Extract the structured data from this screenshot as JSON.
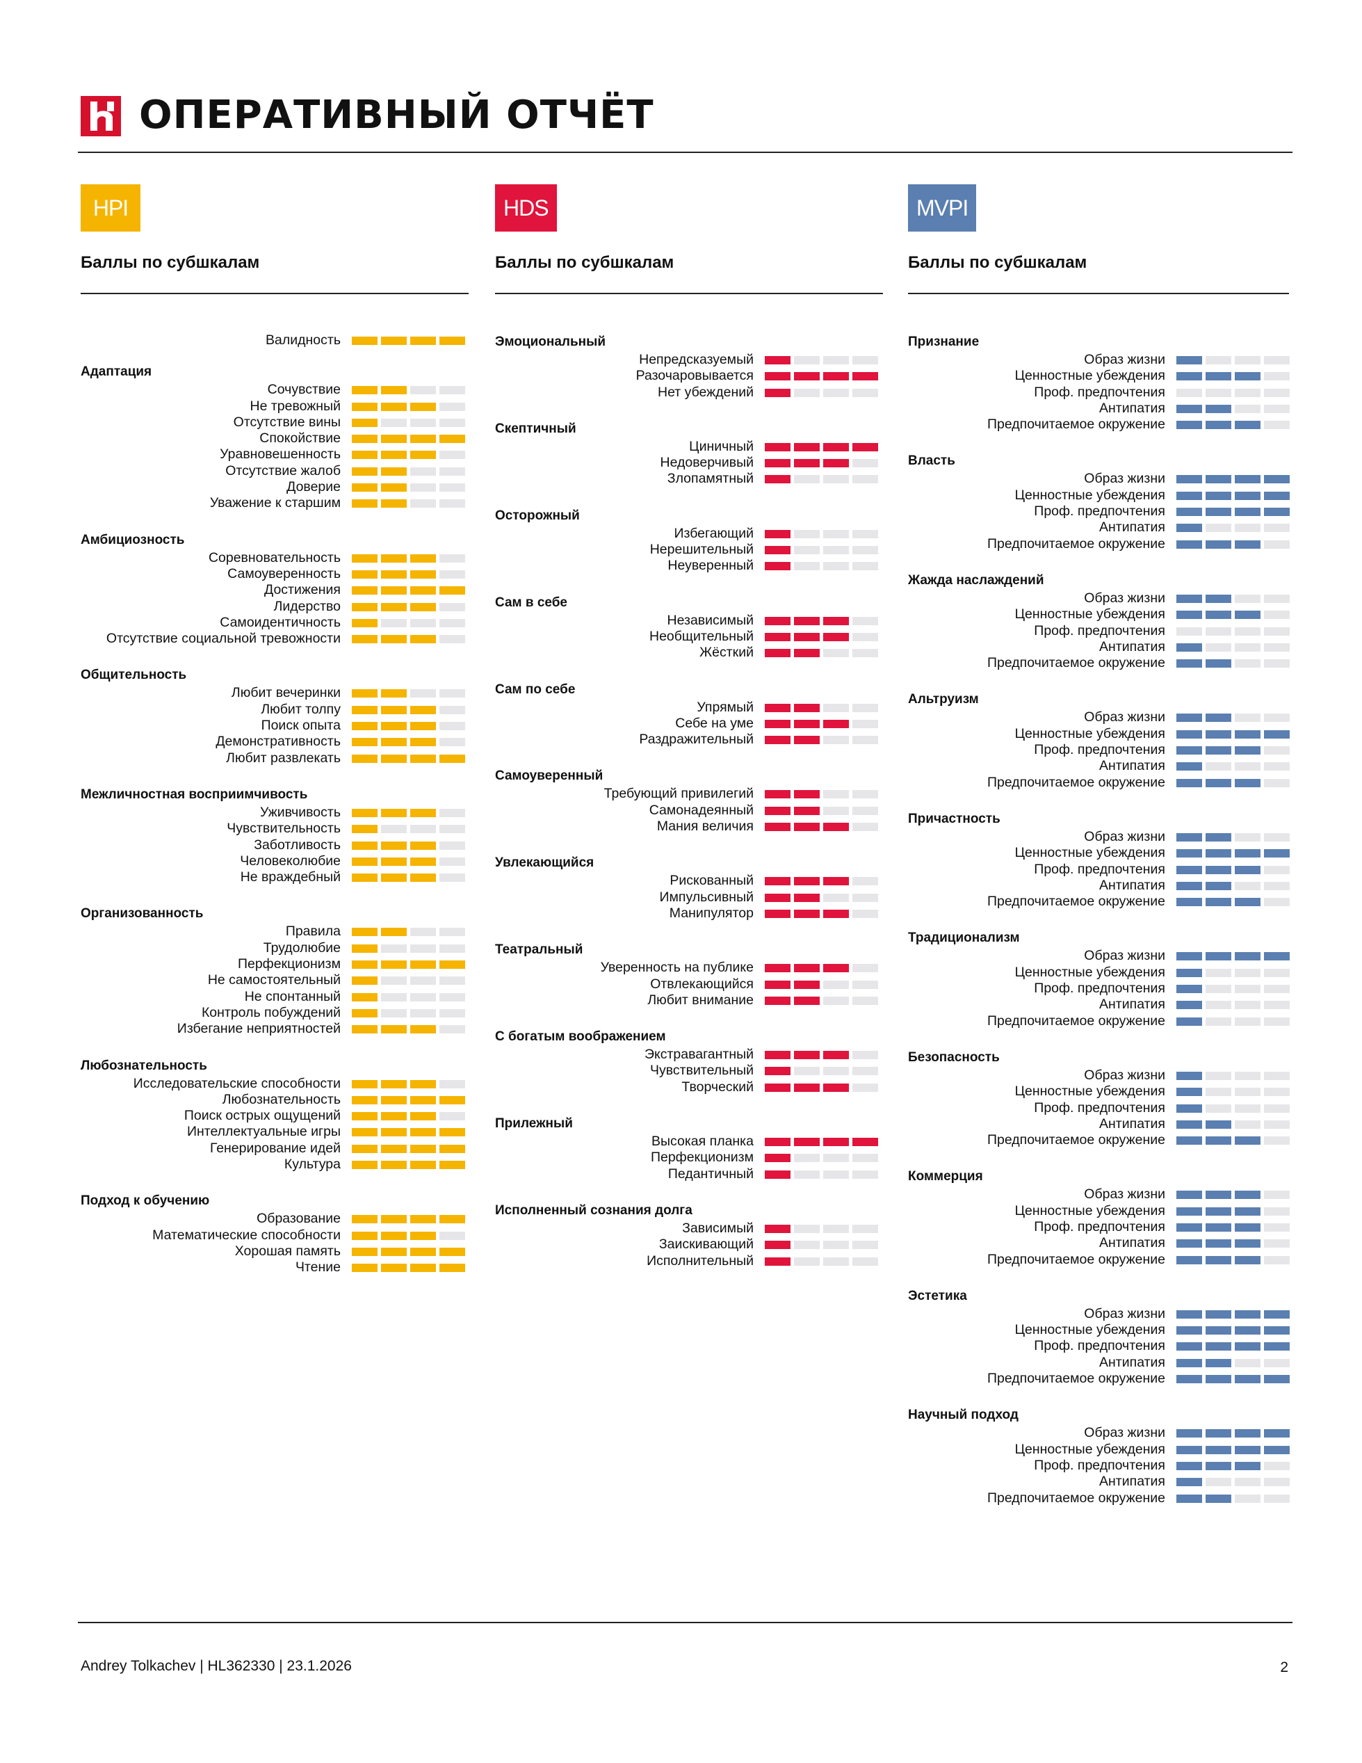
{
  "title": "ОПЕРАТИВНЫЙ ОТЧЁТ",
  "footer": {
    "left": "Andrey Tolkachev | HL362330 | 23.1.2026",
    "page": "2"
  },
  "columns": [
    {
      "badge": "HPI",
      "color": "#f5b400",
      "subtitle": "Баллы по субшкалам",
      "blocks": [
        {
          "gap_before": 0,
          "title": "",
          "rows": [
            {
              "label": "Валидность",
              "level": 4
            }
          ]
        },
        {
          "gap_before": 20,
          "title": "Адаптация",
          "rows": [
            {
              "label": "Сочувствие",
              "level": 2
            },
            {
              "label": "Не тревожный",
              "level": 3
            },
            {
              "label": "Отсутствие вины",
              "level": 1
            },
            {
              "label": "Спокойствие",
              "level": 4
            },
            {
              "label": "Уравновешенность",
              "level": 3
            },
            {
              "label": "Отсутствие жалоб",
              "level": 2
            },
            {
              "label": "Доверие",
              "level": 2
            },
            {
              "label": "Уважение к старшим",
              "level": 2
            }
          ]
        },
        {
          "gap_before": 27,
          "title": "Амбициозность",
          "rows": [
            {
              "label": "Соревновательность",
              "level": 3
            },
            {
              "label": "Самоуверенность",
              "level": 3
            },
            {
              "label": "Достижения",
              "level": 4
            },
            {
              "label": "Лидерство",
              "level": 3
            },
            {
              "label": "Самоидентичность",
              "level": 1
            },
            {
              "label": "Отсутствие социальной тревожности",
              "level": 3
            }
          ]
        },
        {
          "gap_before": 27,
          "title": "Общительность",
          "rows": [
            {
              "label": "Любит вечеринки",
              "level": 2
            },
            {
              "label": "Любит толпу",
              "level": 3
            },
            {
              "label": "Поиск опыта",
              "level": 3
            },
            {
              "label": "Демонстративность",
              "level": 3
            },
            {
              "label": "Любит развлекать",
              "level": 4
            }
          ]
        },
        {
          "gap_before": 27,
          "title": "Межличностная восприимчивость",
          "rows": [
            {
              "label": "Уживчивость",
              "level": 3
            },
            {
              "label": "Чувствительность",
              "level": 1
            },
            {
              "label": "Заботливость",
              "level": 3
            },
            {
              "label": "Человеколюбие",
              "level": 3
            },
            {
              "label": "Не враждебный",
              "level": 3
            }
          ]
        },
        {
          "gap_before": 27,
          "title": "Организованность",
          "rows": [
            {
              "label": "Правила",
              "level": 2
            },
            {
              "label": "Трудолюбие",
              "level": 1
            },
            {
              "label": "Перфекционизм",
              "level": 4
            },
            {
              "label": "Не самостоятельный",
              "level": 1
            },
            {
              "label": "Не спонтанный",
              "level": 1
            },
            {
              "label": "Контроль побуждений",
              "level": 1
            },
            {
              "label": "Избегание неприятностей",
              "level": 3
            }
          ]
        },
        {
          "gap_before": 27,
          "title": "Любознательность",
          "rows": [
            {
              "label": "Исследовательские способности",
              "level": 3
            },
            {
              "label": "Любознательность",
              "level": 4
            },
            {
              "label": "Поиск острых ощущений",
              "level": 3
            },
            {
              "label": "Интеллектуальные игры",
              "level": 4
            },
            {
              "label": "Генерирование идей",
              "level": 4
            },
            {
              "label": "Культура",
              "level": 4
            }
          ]
        },
        {
          "gap_before": 27,
          "title": "Подход к обучению",
          "rows": [
            {
              "label": "Образование",
              "level": 4
            },
            {
              "label": "Математические способности",
              "level": 3
            },
            {
              "label": "Хорошая память",
              "level": 4
            },
            {
              "label": "Чтение",
              "level": 4
            }
          ]
        }
      ]
    },
    {
      "badge": "HDS",
      "color": "#e0143c",
      "subtitle": "Баллы по субшкалам",
      "blocks": [
        {
          "gap_before": 0,
          "title": "Эмоциональный",
          "rows": [
            {
              "label": "Непредсказуемый",
              "level": 1
            },
            {
              "label": "Разочаровывается",
              "level": 4
            },
            {
              "label": "Нет убеждений",
              "level": 1
            }
          ]
        },
        {
          "gap_before": 27,
          "title": "Скептичный",
          "rows": [
            {
              "label": "Циничный",
              "level": 4
            },
            {
              "label": "Недоверчивый",
              "level": 3
            },
            {
              "label": "Злопамятный",
              "level": 1
            }
          ]
        },
        {
          "gap_before": 27,
          "title": "Осторожный",
          "rows": [
            {
              "label": "Избегающий",
              "level": 1
            },
            {
              "label": "Нерешительный",
              "level": 1
            },
            {
              "label": "Неуверенный",
              "level": 1
            }
          ]
        },
        {
          "gap_before": 27,
          "title": "Сам в себе",
          "rows": [
            {
              "label": "Независимый",
              "level": 3
            },
            {
              "label": "Необщительный",
              "level": 3
            },
            {
              "label": "Жёсткий",
              "level": 2
            }
          ]
        },
        {
          "gap_before": 27,
          "title": "Сам по себе",
          "rows": [
            {
              "label": "Упрямый",
              "level": 2
            },
            {
              "label": "Себе на уме",
              "level": 3
            },
            {
              "label": "Раздражительный",
              "level": 2
            }
          ]
        },
        {
          "gap_before": 27,
          "title": "Самоуверенный",
          "rows": [
            {
              "label": "Требующий привилегий",
              "level": 2
            },
            {
              "label": "Самонадеянный",
              "level": 2
            },
            {
              "label": "Мания величия",
              "level": 3
            }
          ]
        },
        {
          "gap_before": 27,
          "title": "Увлекающийся",
          "rows": [
            {
              "label": "Рискованный",
              "level": 3
            },
            {
              "label": "Импульсивный",
              "level": 2
            },
            {
              "label": "Манипулятор",
              "level": 3
            }
          ]
        },
        {
          "gap_before": 27,
          "title": "Театральный",
          "rows": [
            {
              "label": "Уверенность на публике",
              "level": 3
            },
            {
              "label": "Отвлекающийся",
              "level": 2
            },
            {
              "label": "Любит внимание",
              "level": 2
            }
          ]
        },
        {
          "gap_before": 27,
          "title": "С богатым воображением",
          "rows": [
            {
              "label": "Экстравагантный",
              "level": 3
            },
            {
              "label": "Чувствительный",
              "level": 1
            },
            {
              "label": "Творческий",
              "level": 3
            }
          ]
        },
        {
          "gap_before": 27,
          "title": "Прилежный",
          "rows": [
            {
              "label": "Высокая планка",
              "level": 4
            },
            {
              "label": "Перфекционизм",
              "level": 1
            },
            {
              "label": "Педантичный",
              "level": 1
            }
          ]
        },
        {
          "gap_before": 27,
          "title": "Исполненный сознания долга",
          "rows": [
            {
              "label": "Зависимый",
              "level": 1
            },
            {
              "label": "Заискивающий",
              "level": 1
            },
            {
              "label": "Исполнительный",
              "level": 1
            }
          ]
        }
      ]
    },
    {
      "badge": "MVPI",
      "color": "#5a7fb0",
      "subtitle": "Баллы по субшкалам",
      "blocks": [
        {
          "gap_before": 0,
          "title": "Признание",
          "rows": [
            {
              "label": "Образ жизни",
              "level": 1
            },
            {
              "label": "Ценностные убеждения",
              "level": 3
            },
            {
              "label": "Проф. предпочтения",
              "level": 0
            },
            {
              "label": "Антипатия",
              "level": 2
            },
            {
              "label": "Предпочитаемое окружение",
              "level": 3
            }
          ]
        },
        {
          "gap_before": 27,
          "title": "Власть",
          "rows": [
            {
              "label": "Образ жизни",
              "level": 4
            },
            {
              "label": "Ценностные убеждения",
              "level": 4
            },
            {
              "label": "Проф. предпочтения",
              "level": 4
            },
            {
              "label": "Антипатия",
              "level": 1
            },
            {
              "label": "Предпочитаемое окружение",
              "level": 3
            }
          ]
        },
        {
          "gap_before": 27,
          "title": "Жажда наслаждений",
          "rows": [
            {
              "label": "Образ жизни",
              "level": 2
            },
            {
              "label": "Ценностные убеждения",
              "level": 3
            },
            {
              "label": "Проф. предпочтения",
              "level": 0
            },
            {
              "label": "Антипатия",
              "level": 1
            },
            {
              "label": "Предпочитаемое окружение",
              "level": 2
            }
          ]
        },
        {
          "gap_before": 27,
          "title": "Альтруизм",
          "rows": [
            {
              "label": "Образ жизни",
              "level": 2
            },
            {
              "label": "Ценностные убеждения",
              "level": 4
            },
            {
              "label": "Проф. предпочтения",
              "level": 3
            },
            {
              "label": "Антипатия",
              "level": 1
            },
            {
              "label": "Предпочитаемое окружение",
              "level": 3
            }
          ]
        },
        {
          "gap_before": 27,
          "title": "Причастность",
          "rows": [
            {
              "label": "Образ жизни",
              "level": 2
            },
            {
              "label": "Ценностные убеждения",
              "level": 4
            },
            {
              "label": "Проф. предпочтения",
              "level": 3
            },
            {
              "label": "Антипатия",
              "level": 2
            },
            {
              "label": "Предпочитаемое окружение",
              "level": 3
            }
          ]
        },
        {
          "gap_before": 27,
          "title": "Традиционализм",
          "rows": [
            {
              "label": "Образ жизни",
              "level": 4
            },
            {
              "label": "Ценностные убеждения",
              "level": 1
            },
            {
              "label": "Проф. предпочтения",
              "level": 1
            },
            {
              "label": "Антипатия",
              "level": 1
            },
            {
              "label": "Предпочитаемое окружение",
              "level": 1
            }
          ]
        },
        {
          "gap_before": 27,
          "title": "Безопасность",
          "rows": [
            {
              "label": "Образ жизни",
              "level": 1
            },
            {
              "label": "Ценностные убеждения",
              "level": 1
            },
            {
              "label": "Проф. предпочтения",
              "level": 1
            },
            {
              "label": "Антипатия",
              "level": 2
            },
            {
              "label": "Предпочитаемое окружение",
              "level": 3
            }
          ]
        },
        {
          "gap_before": 27,
          "title": "Коммерция",
          "rows": [
            {
              "label": "Образ жизни",
              "level": 3
            },
            {
              "label": "Ценностные убеждения",
              "level": 3
            },
            {
              "label": "Проф. предпочтения",
              "level": 3
            },
            {
              "label": "Антипатия",
              "level": 3
            },
            {
              "label": "Предпочитаемое окружение",
              "level": 3
            }
          ]
        },
        {
          "gap_before": 27,
          "title": "Эстетика",
          "rows": [
            {
              "label": "Образ жизни",
              "level": 4
            },
            {
              "label": "Ценностные убеждения",
              "level": 4
            },
            {
              "label": "Проф. предпочтения",
              "level": 4
            },
            {
              "label": "Антипатия",
              "level": 2
            },
            {
              "label": "Предпочитаемое окружение",
              "level": 4
            }
          ]
        },
        {
          "gap_before": 27,
          "title": "Научный подход",
          "rows": [
            {
              "label": "Образ жизни",
              "level": 4
            },
            {
              "label": "Ценностные убеждения",
              "level": 4
            },
            {
              "label": "Проф. предпочтения",
              "level": 3
            },
            {
              "label": "Антипатия",
              "level": 1
            },
            {
              "label": "Предпочитаемое окружение",
              "level": 2
            }
          ]
        }
      ]
    }
  ]
}
